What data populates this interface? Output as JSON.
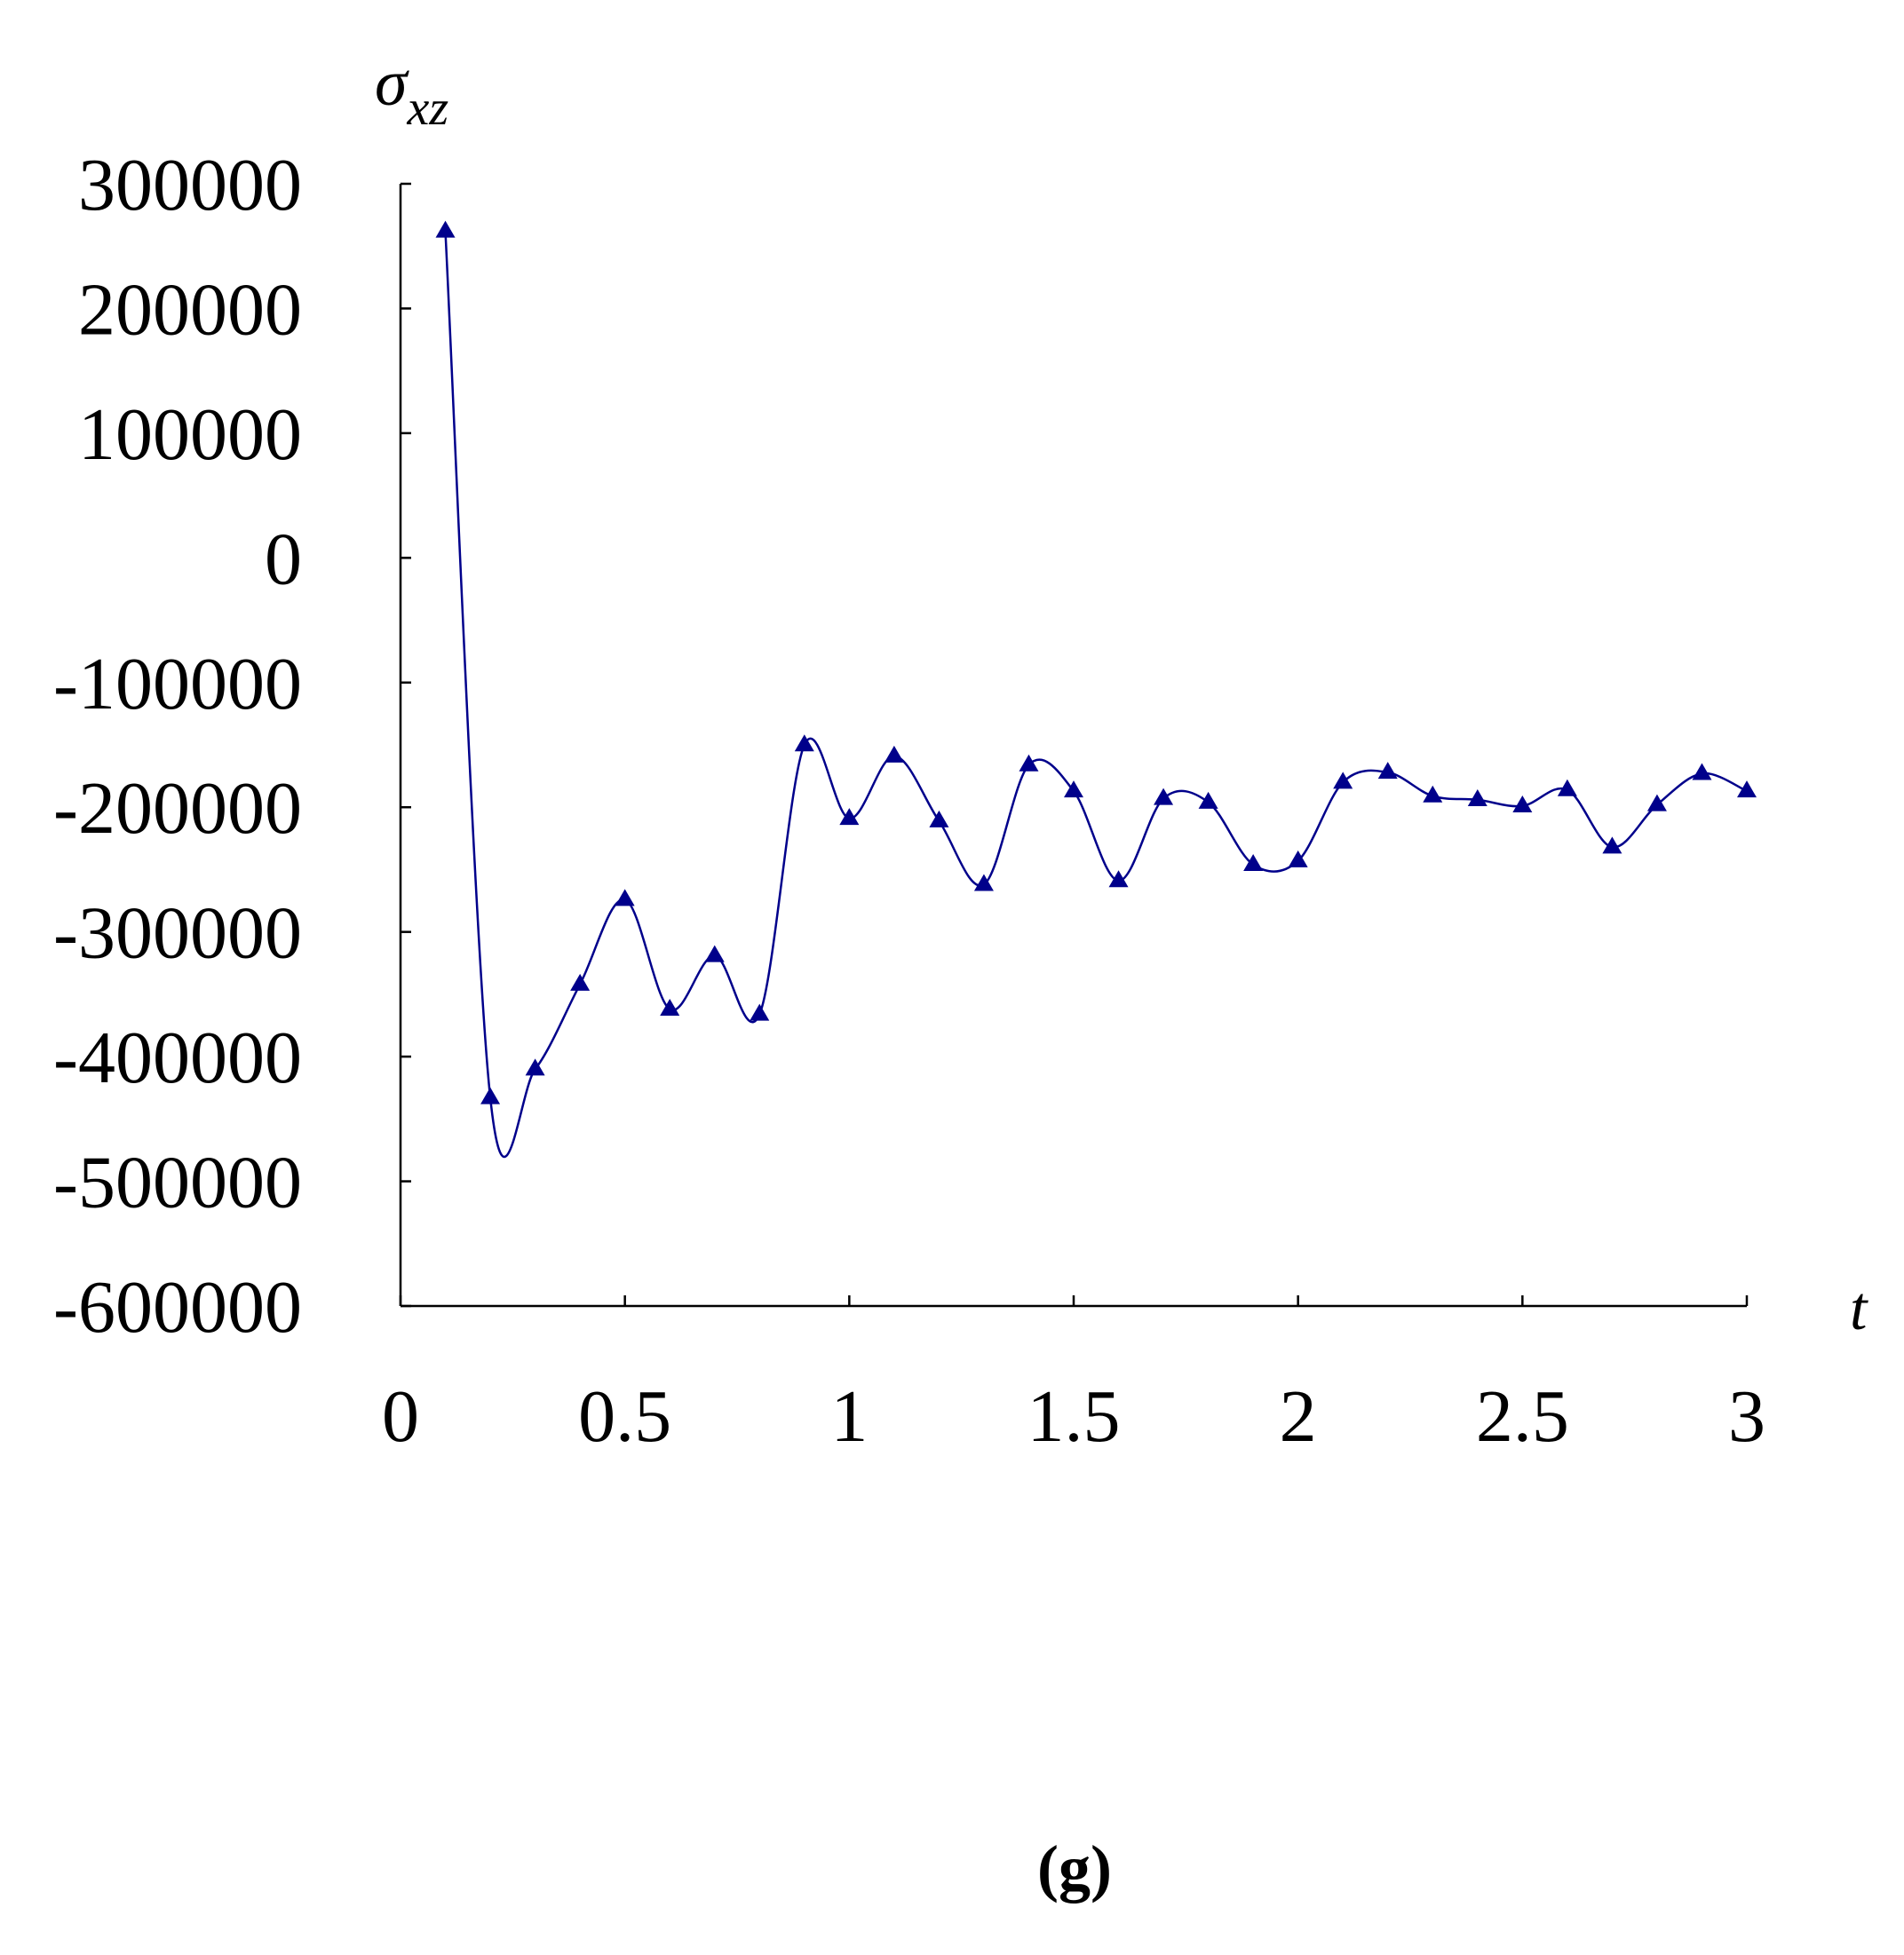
{
  "chart_data": {
    "type": "line",
    "ylabel": "σ",
    "ylabel_sub": "xz",
    "xlabel": "t",
    "caption": "(g)",
    "xlim": [
      0,
      3
    ],
    "ylim": [
      -600000,
      300000
    ],
    "x_ticks": [
      "0",
      "0.5",
      "1",
      "1.5",
      "2",
      "2.5",
      "3"
    ],
    "y_ticks": [
      "300000",
      "200000",
      "100000",
      "0",
      "-100000",
      "-200000",
      "-300000",
      "-400000",
      "-500000",
      "-600000"
    ],
    "grid": false,
    "marker": "triangle",
    "line_color": "#00008B",
    "series": [
      {
        "x": [
          0.1,
          0.2,
          0.3,
          0.4,
          0.5,
          0.6,
          0.7,
          0.8,
          0.9,
          1.0,
          1.1,
          1.2,
          1.3,
          1.4,
          1.5,
          1.6,
          1.7,
          1.8,
          1.9,
          2.0,
          2.1,
          2.2,
          2.3,
          2.4,
          2.5,
          2.6,
          2.7,
          2.8,
          2.9,
          3.0
        ],
        "values": [
          262000,
          -433000,
          -410000,
          -342000,
          -274000,
          -362000,
          -319000,
          -366000,
          -150000,
          -209000,
          -159000,
          -211000,
          -262000,
          -166000,
          -187000,
          -259000,
          -193000,
          -196000,
          -246000,
          -243000,
          -180000,
          -172000,
          -191000,
          -194000,
          -199000,
          -186000,
          -232000,
          -198000,
          -173000,
          -187000
        ]
      }
    ]
  }
}
